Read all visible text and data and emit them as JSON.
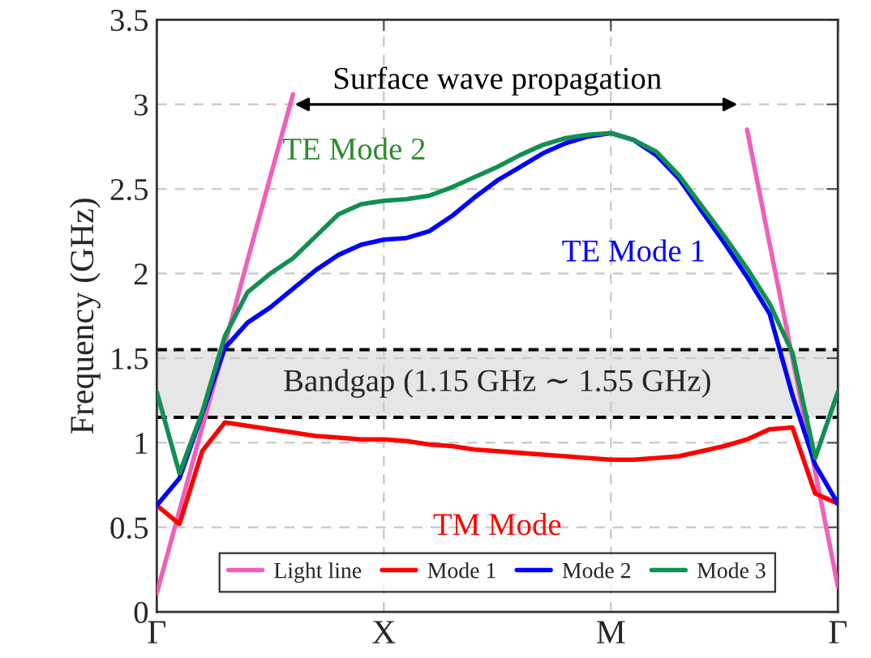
{
  "chart_data": {
    "type": "line",
    "ylabel": "Frequency (GHz)",
    "categories": [
      "Γ",
      null,
      null,
      null,
      null,
      null,
      null,
      null,
      null,
      null,
      "X",
      null,
      null,
      null,
      null,
      null,
      null,
      null,
      null,
      null,
      "M",
      null,
      null,
      null,
      null,
      null,
      null,
      null,
      null,
      null,
      "Γ"
    ],
    "ylim": [
      0,
      3.5
    ],
    "yticks": [
      0,
      0.5,
      1,
      1.5,
      2,
      2.5,
      3,
      3.5
    ],
    "grid": true,
    "legend": "bottom",
    "line_style": "solid",
    "marker": "none",
    "series": [
      {
        "name": "Light line",
        "color": "#f060b8",
        "values": [
          0.11,
          0.6,
          1.09,
          1.58,
          2.08,
          2.57,
          3.06,
          null,
          null,
          null,
          null,
          null,
          null,
          null,
          null,
          null,
          null,
          null,
          null,
          null,
          null,
          null,
          null,
          null,
          null,
          null,
          2.85,
          2.17,
          1.5,
          0.83,
          0.15
        ]
      },
      {
        "name": "Mode 1",
        "color": "#ff0000",
        "values": [
          0.63,
          0.52,
          0.95,
          1.12,
          1.1,
          1.08,
          1.06,
          1.04,
          1.03,
          1.02,
          1.02,
          1.01,
          0.99,
          0.98,
          0.96,
          0.95,
          0.94,
          0.93,
          0.92,
          0.91,
          0.9,
          0.9,
          0.91,
          0.92,
          0.95,
          0.98,
          1.02,
          1.08,
          1.09,
          0.7,
          0.64
        ]
      },
      {
        "name": "Mode 2",
        "color": "#0000ff",
        "values": [
          0.63,
          0.79,
          1.17,
          1.56,
          1.71,
          1.8,
          1.91,
          2.02,
          2.11,
          2.17,
          2.2,
          2.21,
          2.25,
          2.34,
          2.45,
          2.55,
          2.63,
          2.71,
          2.77,
          2.81,
          2.83,
          2.79,
          2.7,
          2.56,
          2.37,
          2.18,
          1.98,
          1.76,
          1.28,
          0.87,
          0.64
        ]
      },
      {
        "name": "Mode 3",
        "color": "#109050",
        "values": [
          1.3,
          0.82,
          1.18,
          1.63,
          1.89,
          2.0,
          2.09,
          2.22,
          2.35,
          2.41,
          2.43,
          2.44,
          2.46,
          2.51,
          2.57,
          2.63,
          2.7,
          2.76,
          2.8,
          2.82,
          2.83,
          2.79,
          2.72,
          2.58,
          2.4,
          2.22,
          2.03,
          1.82,
          1.53,
          0.91,
          1.3
        ]
      }
    ],
    "ref_lines": [
      {
        "axis": "y",
        "value": 1.55,
        "color": "#000000",
        "line_style": "dashed"
      },
      {
        "axis": "y",
        "value": 1.15,
        "color": "#000000",
        "line_style": "dashed"
      }
    ],
    "bands": [
      {
        "axis": "y",
        "from": 1.15,
        "to": 1.55,
        "label": "Bandgap (1.15 GHz ∼ 1.55 GHz)",
        "color": "#e6e6e6"
      }
    ],
    "annotations": [
      "Surface wave propagation",
      "TE Mode 2",
      "TE Mode 1",
      "TM Mode"
    ]
  }
}
